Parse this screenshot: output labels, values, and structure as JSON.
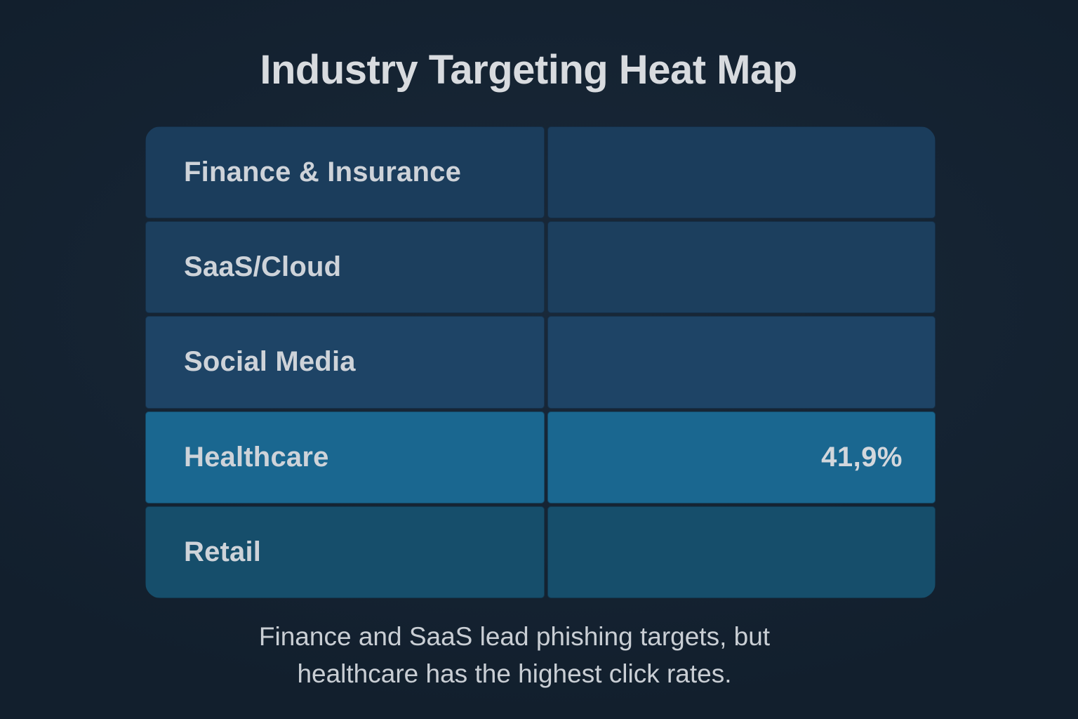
{
  "title": "Industry Targeting Heat Map",
  "heatmap": {
    "rows": [
      {
        "label": "Finance & Insurance",
        "value": "",
        "color": "#1b3d5c"
      },
      {
        "label": "SaaS/Cloud",
        "value": "",
        "color": "#1c3f5e"
      },
      {
        "label": "Social Media",
        "value": "",
        "color": "#1e4466"
      },
      {
        "label": "Healthcare",
        "value": "41,9%",
        "color": "#1a6790"
      },
      {
        "label": "Retail",
        "value": "",
        "color": "#164e6b"
      }
    ]
  },
  "caption": {
    "line1": "Finance and SaaS lead phishing targets, but",
    "line2": "healthcare has the highest click rates."
  },
  "colors": {
    "background": "#121f2d",
    "grid_line": "#0d1b28",
    "text": "#ced3d9",
    "highlight_cell": "#1a6790"
  },
  "chart_data": {
    "type": "heatmap",
    "title": "Industry Targeting Heat Map",
    "categories": [
      "Finance & Insurance",
      "SaaS/Cloud",
      "Social Media",
      "Healthcare",
      "Retail"
    ],
    "series": [
      {
        "name": "click_rate",
        "values": [
          null,
          null,
          null,
          41.9,
          null
        ],
        "value_labels": [
          "",
          "",
          "",
          "41,9%",
          ""
        ]
      }
    ],
    "cell_colors": [
      "#1b3d5c",
      "#1c3f5e",
      "#1e4466",
      "#1a6790",
      "#164e6b"
    ],
    "annotations": [
      "Finance and SaaS lead phishing targets, but healthcare has the highest click rates."
    ],
    "legend": false,
    "grid": true,
    "layout": "two-column table: industry label left, value right; heat intensity encoded by cell color; Healthcare row brightest"
  }
}
